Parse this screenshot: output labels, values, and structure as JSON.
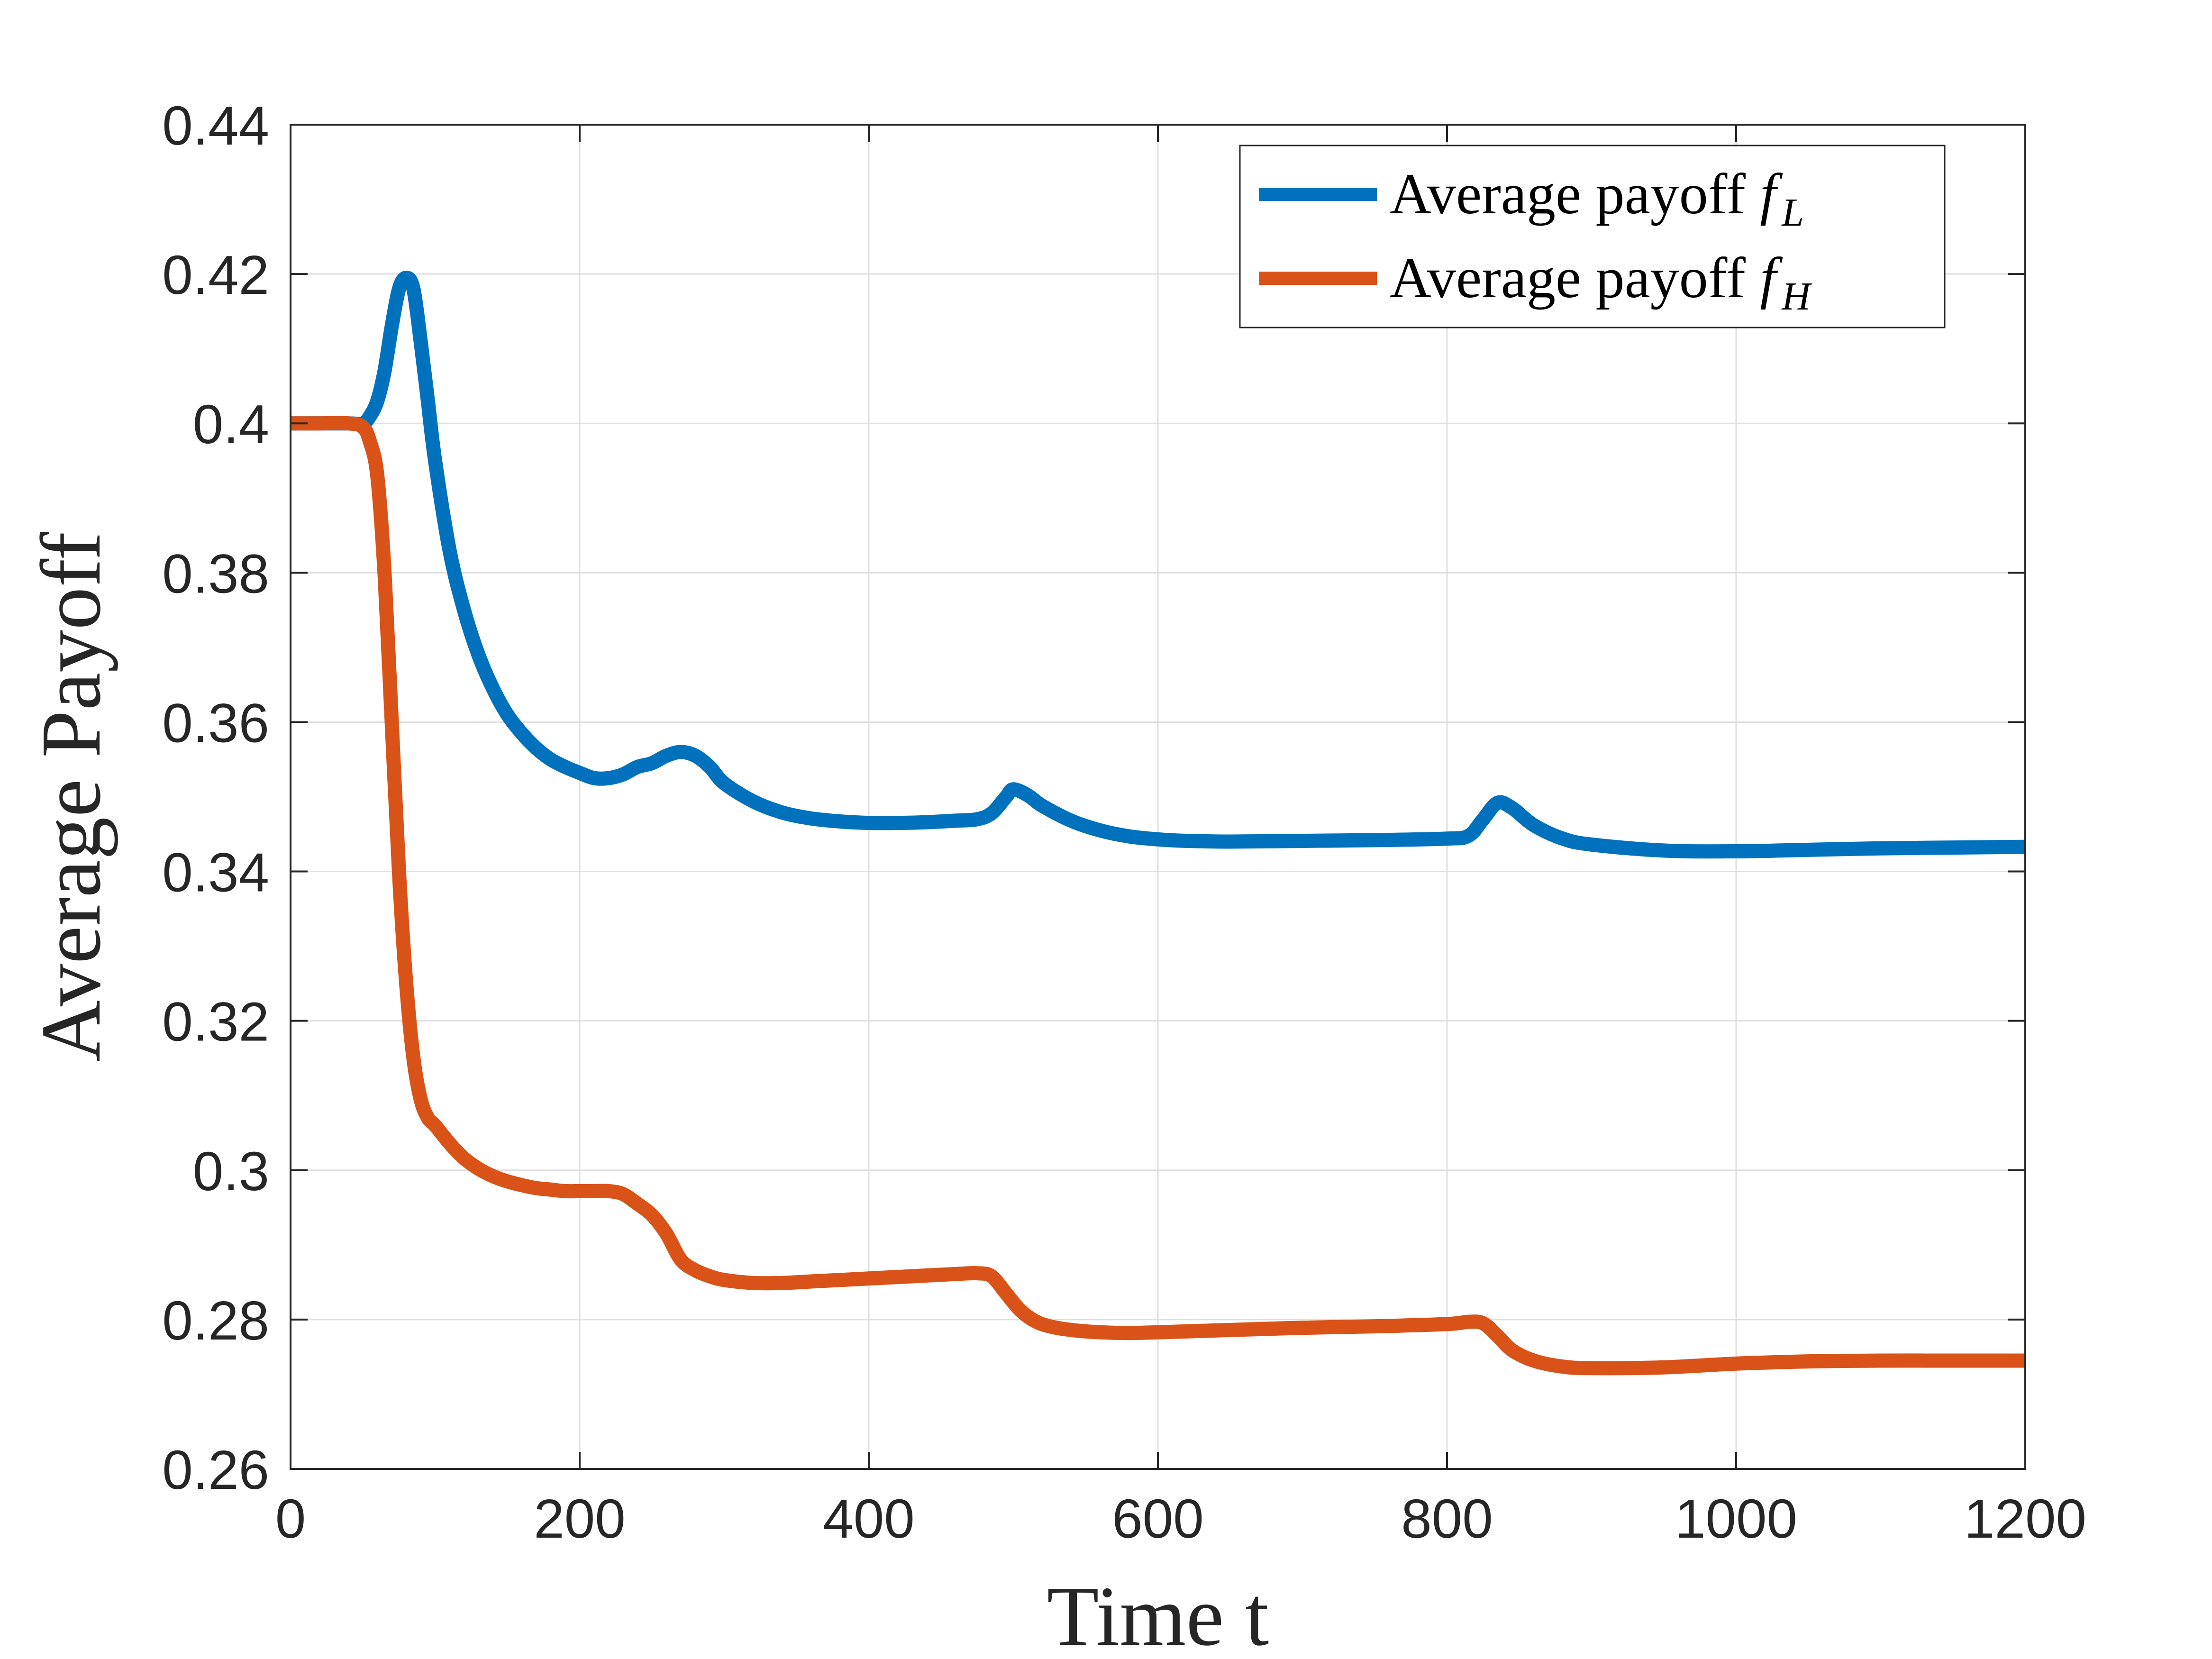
{
  "chart_data": {
    "type": "line",
    "title": "",
    "xlabel": "Time t",
    "ylabel": "Average Payoff",
    "xlim": [
      0,
      1200
    ],
    "ylim": [
      0.26,
      0.44
    ],
    "x_ticks": [
      0,
      200,
      400,
      600,
      800,
      1000,
      1200
    ],
    "x_tick_labels": [
      "0",
      "200",
      "400",
      "600",
      "800",
      "1000",
      "1200"
    ],
    "y_ticks": [
      0.26,
      0.28,
      0.3,
      0.32,
      0.34,
      0.36,
      0.38,
      0.4,
      0.42,
      0.44
    ],
    "y_tick_labels": [
      "0.26",
      "0.28",
      "0.3",
      "0.32",
      "0.34",
      "0.36",
      "0.38",
      "0.4",
      "0.42",
      "0.44"
    ],
    "grid": true,
    "legend_position": "top-right",
    "series": [
      {
        "name": "Average payoff f_L",
        "legend_prefix": "Average payoff ",
        "legend_symbol": "f",
        "legend_subscript": "L",
        "color": "#0072BD",
        "x": [
          0,
          20,
          40,
          50,
          55,
          60,
          65,
          70,
          75,
          80,
          85,
          90,
          95,
          100,
          110,
          120,
          130,
          140,
          150,
          160,
          170,
          180,
          190,
          200,
          210,
          220,
          230,
          240,
          250,
          260,
          270,
          280,
          290,
          300,
          320,
          340,
          360,
          380,
          400,
          420,
          440,
          460,
          475,
          485,
          495,
          500,
          510,
          520,
          540,
          560,
          580,
          600,
          620,
          650,
          700,
          750,
          800,
          815,
          825,
          835,
          845,
          860,
          880,
          900,
          950,
          1000,
          1050,
          1100,
          1150,
          1200
        ],
        "y": [
          0.4,
          0.4,
          0.4,
          0.4,
          0.401,
          0.403,
          0.407,
          0.413,
          0.418,
          0.4195,
          0.418,
          0.411,
          0.403,
          0.395,
          0.383,
          0.375,
          0.369,
          0.3645,
          0.361,
          0.3585,
          0.3565,
          0.355,
          0.354,
          0.3532,
          0.3525,
          0.3525,
          0.353,
          0.354,
          0.3545,
          0.3555,
          0.356,
          0.3555,
          0.354,
          0.3518,
          0.3494,
          0.3479,
          0.3471,
          0.3467,
          0.3465,
          0.3465,
          0.3466,
          0.3468,
          0.347,
          0.3478,
          0.35,
          0.351,
          0.3502,
          0.3488,
          0.3468,
          0.3455,
          0.3447,
          0.3443,
          0.3441,
          0.344,
          0.3441,
          0.3442,
          0.3444,
          0.3448,
          0.347,
          0.3492,
          0.3485,
          0.3462,
          0.3444,
          0.3436,
          0.3428,
          0.3427,
          0.3429,
          0.3431,
          0.3432,
          0.3433
        ]
      },
      {
        "name": "Average payoff f_H",
        "legend_prefix": "Average payoff ",
        "legend_symbol": "f",
        "legend_subscript": "H",
        "color": "#D95319",
        "x": [
          0,
          20,
          40,
          50,
          55,
          60,
          65,
          70,
          75,
          80,
          85,
          90,
          95,
          100,
          110,
          120,
          130,
          140,
          150,
          160,
          170,
          180,
          190,
          200,
          210,
          220,
          230,
          240,
          250,
          260,
          270,
          280,
          290,
          300,
          320,
          340,
          360,
          380,
          400,
          420,
          440,
          460,
          475,
          485,
          495,
          505,
          515,
          525,
          540,
          560,
          580,
          600,
          650,
          700,
          750,
          800,
          815,
          825,
          835,
          845,
          860,
          880,
          900,
          950,
          1000,
          1050,
          1100,
          1150,
          1200
        ],
        "y": [
          0.4,
          0.4,
          0.4,
          0.3995,
          0.3975,
          0.393,
          0.38,
          0.36,
          0.34,
          0.325,
          0.315,
          0.3095,
          0.307,
          0.306,
          0.3036,
          0.3016,
          0.3002,
          0.2992,
          0.2985,
          0.298,
          0.2976,
          0.2974,
          0.2972,
          0.2972,
          0.2972,
          0.2972,
          0.2968,
          0.2955,
          0.294,
          0.2915,
          0.288,
          0.2866,
          0.2858,
          0.2853,
          0.2849,
          0.2849,
          0.2851,
          0.2853,
          0.2855,
          0.2857,
          0.2859,
          0.2861,
          0.2862,
          0.2858,
          0.2835,
          0.2812,
          0.2798,
          0.2791,
          0.2786,
          0.2783,
          0.2782,
          0.2783,
          0.2786,
          0.2789,
          0.2791,
          0.2794,
          0.2797,
          0.2795,
          0.2778,
          0.2759,
          0.2745,
          0.2737,
          0.2735,
          0.2736,
          0.2741,
          0.2744,
          0.2745,
          0.2745,
          0.2745
        ]
      }
    ]
  }
}
